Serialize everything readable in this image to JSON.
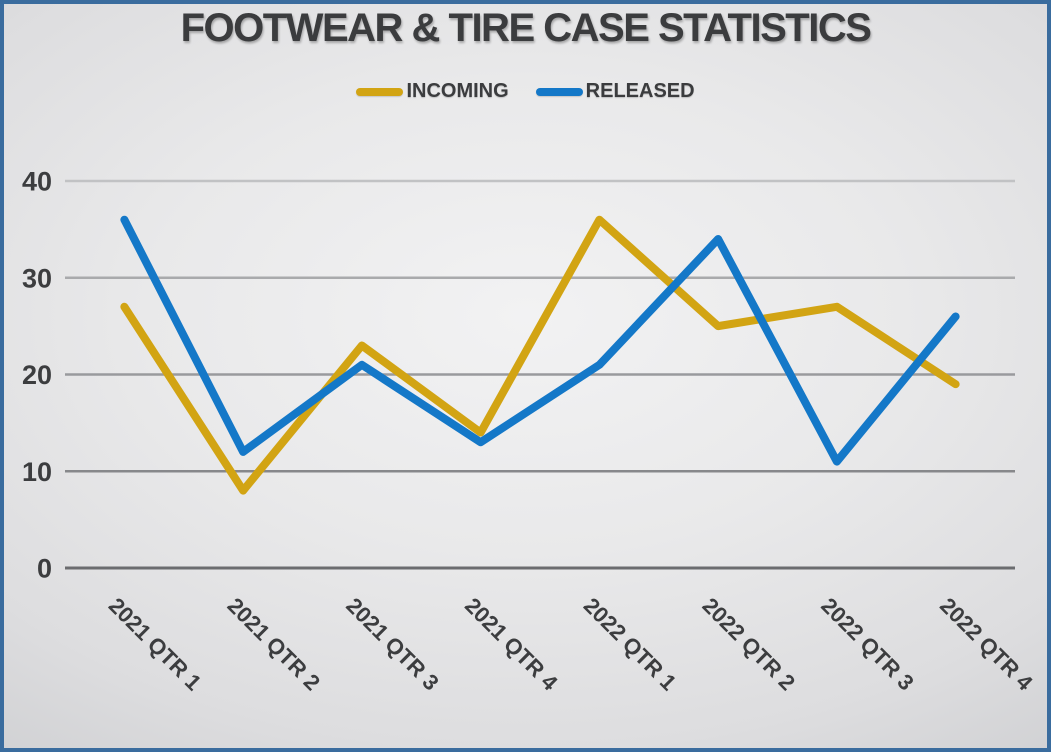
{
  "title": "FOOTWEAR & TIRE CASE STATISTICS",
  "legend": {
    "items": [
      {
        "label": "INCOMING"
      },
      {
        "label": "RELEASED"
      }
    ]
  },
  "colors": {
    "incoming_line": "#d2a413",
    "released_line": "#1478c8",
    "border": "#3a6c9e",
    "text": "#3b3c3e",
    "gridline": "#9a9b9e",
    "zero_axis_line": "#6b6c6f"
  },
  "y_axis": {
    "tick_labels": [
      "40",
      "30",
      "20",
      "10",
      "0"
    ]
  },
  "chart_data": {
    "type": "line",
    "title": "FOOTWEAR & TIRE CASE STATISTICS",
    "categories": [
      "2021 QTR 1",
      "2021 QTR 2",
      "2021 QTR 3",
      "2021 QTR 4",
      "2022 QTR 1",
      "2022 QTR 2",
      "2022 QTR 3",
      "2022 QTR 4"
    ],
    "series": [
      {
        "name": "INCOMING",
        "color": "#d2a413",
        "values": [
          27,
          8,
          23,
          14,
          36,
          25,
          27,
          19
        ]
      },
      {
        "name": "RELEASED",
        "color": "#1478c8",
        "values": [
          36,
          12,
          21,
          13,
          21,
          34,
          11,
          26
        ]
      }
    ],
    "xlabel": "",
    "ylabel": "",
    "ylim": [
      0,
      40
    ],
    "yticks": [
      0,
      10,
      20,
      30,
      40
    ],
    "grid": true,
    "legend_position": "top",
    "x_tick_rotation_deg": 45
  }
}
